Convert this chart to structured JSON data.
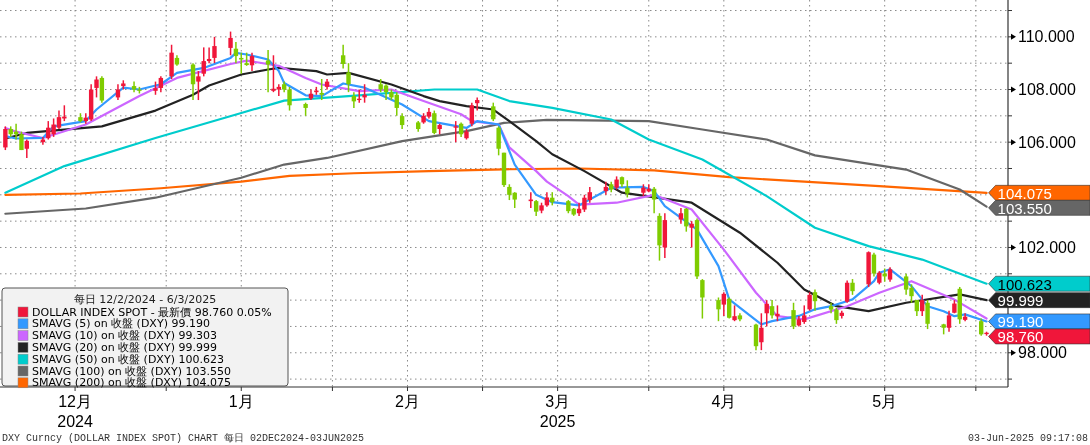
{
  "chart_data": {
    "type": "candlestick",
    "x": [
      "2024-12-02",
      "2024-12-03",
      "2024-12-04",
      "2024-12-05",
      "2024-12-06",
      "2024-12-09",
      "2024-12-10",
      "2024-12-11",
      "2024-12-12",
      "2024-12-13",
      "2024-12-16",
      "2024-12-17",
      "2024-12-18",
      "2024-12-19",
      "2024-12-20",
      "2024-12-23",
      "2024-12-24",
      "2024-12-26",
      "2024-12-27",
      "2024-12-30",
      "2024-12-31",
      "2025-01-02",
      "2025-01-03",
      "2025-01-06",
      "2025-01-07",
      "2025-01-08",
      "2025-01-09",
      "2025-01-10",
      "2025-01-13",
      "2025-01-14",
      "2025-01-15",
      "2025-01-16",
      "2025-01-17",
      "2025-01-20",
      "2025-01-21",
      "2025-01-22",
      "2025-01-23",
      "2025-01-24",
      "2025-01-27",
      "2025-01-28",
      "2025-01-29",
      "2025-01-30",
      "2025-01-31",
      "2025-02-03",
      "2025-02-04",
      "2025-02-05",
      "2025-02-06",
      "2025-02-07",
      "2025-02-10",
      "2025-02-11",
      "2025-02-12",
      "2025-02-13",
      "2025-02-14",
      "2025-02-17",
      "2025-02-18",
      "2025-02-19",
      "2025-02-20",
      "2025-02-21",
      "2025-02-24",
      "2025-02-25",
      "2025-02-26",
      "2025-02-27",
      "2025-02-28",
      "2025-03-03",
      "2025-03-04",
      "2025-03-05",
      "2025-03-06",
      "2025-03-07",
      "2025-03-10",
      "2025-03-11",
      "2025-03-12",
      "2025-03-13",
      "2025-03-14",
      "2025-03-17",
      "2025-03-18",
      "2025-03-19",
      "2025-03-20",
      "2025-03-21",
      "2025-03-24",
      "2025-03-25",
      "2025-03-26",
      "2025-03-27",
      "2025-03-28",
      "2025-03-31",
      "2025-04-01",
      "2025-04-02",
      "2025-04-03",
      "2025-04-04",
      "2025-04-07",
      "2025-04-08",
      "2025-04-09",
      "2025-04-10",
      "2025-04-11",
      "2025-04-14",
      "2025-04-15",
      "2025-04-16",
      "2025-04-17",
      "2025-04-18",
      "2025-04-21",
      "2025-04-22",
      "2025-04-23",
      "2025-04-24",
      "2025-04-25",
      "2025-04-28",
      "2025-04-29",
      "2025-04-30",
      "2025-05-01",
      "2025-05-02",
      "2025-05-05",
      "2025-05-06",
      "2025-05-07",
      "2025-05-08",
      "2025-05-09",
      "2025-05-12",
      "2025-05-13",
      "2025-05-14",
      "2025-05-15",
      "2025-05-16",
      "2025-05-19",
      "2025-05-20",
      "2025-05-21",
      "2025-05-22",
      "2025-05-23",
      "2025-05-26",
      "2025-05-27",
      "2025-05-28",
      "2025-05-29",
      "2025-05-30",
      "2025-06-02",
      "2025-06-03"
    ],
    "series": [
      {
        "name": "DOLLAR INDEX SPOT - 最新價 98.760 0.05%",
        "color": "#f0163a",
        "ohlc": [
          [
            105.8,
            106.6,
            105.7,
            106.5
          ],
          [
            106.5,
            106.6,
            106.2,
            106.3
          ],
          [
            106.4,
            106.7,
            106.1,
            106.3
          ],
          [
            106.3,
            106.4,
            105.7,
            105.7
          ],
          [
            105.75,
            106.1,
            105.4,
            106.05
          ],
          [
            106.0,
            106.2,
            105.9,
            106.1
          ],
          [
            106.15,
            106.8,
            106.1,
            106.55
          ],
          [
            106.3,
            106.9,
            106.2,
            106.67
          ],
          [
            106.55,
            107.2,
            106.5,
            106.95
          ],
          [
            106.9,
            107.4,
            106.8,
            106.97
          ],
          [
            106.95,
            107.1,
            106.75,
            106.8
          ],
          [
            106.8,
            107.1,
            106.7,
            106.93
          ],
          [
            106.86,
            108.2,
            106.8,
            108.0
          ],
          [
            108.06,
            108.5,
            107.7,
            108.38
          ],
          [
            108.44,
            108.5,
            107.5,
            107.58
          ],
          [
            107.7,
            108.2,
            107.6,
            108.0
          ],
          [
            108.13,
            108.35,
            108.0,
            108.23
          ],
          [
            108.13,
            108.3,
            107.9,
            108.0
          ],
          [
            108.0,
            108.1,
            107.85,
            107.95
          ],
          [
            107.95,
            108.3,
            107.8,
            108.05
          ],
          [
            108.06,
            108.5,
            107.9,
            108.44
          ],
          [
            108.5,
            109.7,
            108.4,
            109.4
          ],
          [
            109.2,
            109.3,
            108.9,
            108.95
          ],
          [
            108.95,
            109.0,
            107.6,
            108.2
          ],
          [
            108.3,
            108.7,
            107.6,
            108.5
          ],
          [
            108.6,
            109.6,
            108.5,
            109.08
          ],
          [
            109.08,
            109.6,
            109.0,
            109.16
          ],
          [
            109.2,
            110.0,
            109.0,
            109.65
          ],
          [
            109.58,
            110.2,
            109.3,
            109.96
          ],
          [
            109.55,
            109.8,
            109.0,
            109.27
          ],
          [
            109.2,
            109.4,
            108.6,
            109.14
          ],
          [
            109.0,
            109.4,
            108.9,
            108.93
          ],
          [
            108.92,
            109.4,
            108.7,
            109.27
          ],
          [
            109.1,
            109.5,
            107.9,
            108.95
          ],
          [
            107.95,
            109.3,
            107.9,
            108.03
          ],
          [
            108.0,
            108.2,
            107.75,
            108.1
          ],
          [
            108.2,
            108.3,
            107.9,
            108.0
          ],
          [
            108.0,
            108.1,
            107.2,
            107.4
          ],
          [
            107.45,
            107.5,
            107.0,
            107.3
          ],
          [
            107.66,
            108.0,
            107.6,
            107.84
          ],
          [
            107.9,
            108.1,
            107.8,
            107.96
          ],
          [
            107.87,
            108.4,
            107.6,
            107.8
          ],
          [
            108.1,
            108.4,
            108.0,
            108.3
          ],
          [
            109.3,
            109.7,
            108.8,
            108.97
          ],
          [
            108.65,
            109.0,
            107.9,
            108.2
          ],
          [
            107.75,
            107.9,
            107.3,
            107.55
          ],
          [
            107.6,
            108.0,
            107.5,
            107.65
          ],
          [
            107.7,
            108.2,
            107.5,
            107.8
          ],
          [
            108.2,
            108.4,
            107.9,
            108.0
          ],
          [
            108.15,
            108.2,
            107.6,
            107.9
          ],
          [
            107.9,
            108.0,
            107.6,
            107.7
          ],
          [
            107.8,
            107.9,
            107.0,
            107.3
          ],
          [
            106.99,
            107.1,
            106.5,
            106.65
          ],
          [
            106.75,
            106.8,
            106.4,
            106.5
          ],
          [
            106.75,
            107.1,
            106.7,
            107.0
          ],
          [
            106.97,
            107.3,
            106.9,
            107.15
          ],
          [
            107.1,
            107.2,
            106.3,
            106.35
          ],
          [
            106.5,
            106.7,
            106.3,
            106.65
          ],
          [
            106.55,
            106.8,
            106.0,
            106.6
          ],
          [
            106.7,
            106.75,
            106.2,
            106.3
          ],
          [
            106.15,
            106.5,
            106.1,
            106.4
          ],
          [
            106.7,
            107.5,
            106.6,
            107.4
          ],
          [
            107.48,
            107.7,
            107.2,
            107.6
          ],
          [
            107.36,
            107.5,
            106.8,
            106.87
          ],
          [
            106.55,
            106.6,
            105.5,
            105.75
          ],
          [
            105.6,
            105.6,
            104.3,
            104.37
          ],
          [
            104.3,
            104.4,
            103.8,
            104.0
          ],
          [
            104.08,
            104.1,
            103.5,
            103.82
          ],
          [
            103.76,
            104.1,
            103.5,
            103.82
          ],
          [
            103.76,
            103.8,
            103.2,
            103.36
          ],
          [
            103.4,
            103.7,
            103.3,
            103.6
          ],
          [
            103.6,
            104.1,
            103.55,
            103.9
          ],
          [
            103.89,
            104.1,
            103.6,
            103.72
          ],
          [
            103.76,
            103.8,
            103.3,
            103.38
          ],
          [
            103.47,
            103.5,
            103.2,
            103.25
          ],
          [
            103.3,
            103.7,
            103.2,
            103.47
          ],
          [
            103.44,
            104.0,
            103.35,
            103.89
          ],
          [
            103.8,
            104.3,
            103.7,
            104.1
          ],
          [
            104.14,
            104.5,
            104.0,
            104.3
          ],
          [
            104.4,
            104.5,
            104.1,
            104.2
          ],
          [
            104.27,
            104.7,
            104.2,
            104.58
          ],
          [
            104.67,
            104.7,
            104.3,
            104.4
          ],
          [
            104.27,
            104.55,
            103.9,
            104.05
          ],
          [
            104.08,
            104.4,
            103.95,
            104.27
          ],
          [
            104.13,
            104.4,
            104.1,
            104.23
          ],
          [
            104.23,
            104.3,
            103.3,
            103.82
          ],
          [
            103.2,
            103.3,
            101.5,
            102.08
          ],
          [
            102.0,
            103.3,
            101.6,
            103.04
          ],
          [
            103.06,
            103.5,
            102.9,
            103.3
          ],
          [
            103.47,
            103.5,
            102.6,
            102.8
          ],
          [
            102.75,
            103.0,
            102.0,
            102.9
          ],
          [
            103.04,
            103.1,
            100.8,
            100.9
          ],
          [
            100.76,
            100.8,
            99.3,
            100.1
          ],
          [
            100.0,
            100.1,
            99.2,
            99.65
          ],
          [
            99.83,
            100.3,
            99.4,
            100.24
          ],
          [
            100.05,
            100.1,
            99.3,
            99.33
          ],
          [
            99.24,
            99.8,
            99.2,
            99.39
          ],
          [
            99.42,
            99.5,
            99.2,
            99.27
          ],
          [
            99.07,
            99.1,
            98.1,
            98.25
          ],
          [
            98.4,
            99.5,
            98.1,
            98.95
          ],
          [
            99.5,
            100.0,
            99.0,
            99.86
          ],
          [
            99.77,
            100.0,
            99.3,
            99.42
          ],
          [
            99.39,
            99.8,
            99.2,
            99.48
          ],
          [
            99.62,
            99.9,
            98.9,
            99.0
          ],
          [
            99.04,
            99.4,
            99.0,
            99.27
          ],
          [
            99.17,
            99.8,
            99.1,
            99.42
          ],
          [
            99.65,
            100.3,
            99.6,
            100.2
          ],
          [
            100.3,
            100.4,
            99.6,
            99.96
          ],
          [
            99.77,
            99.9,
            99.5,
            99.64
          ],
          [
            99.64,
            99.7,
            99.1,
            99.24
          ],
          [
            99.4,
            99.6,
            99.3,
            99.52
          ],
          [
            99.94,
            100.75,
            99.9,
            100.66
          ],
          [
            100.66,
            100.8,
            100.2,
            100.34
          ],
          [
            100.6,
            101.85,
            100.5,
            101.82
          ],
          [
            101.73,
            101.8,
            100.9,
            101.01
          ],
          [
            100.66,
            101.1,
            100.6,
            101.04
          ],
          [
            101.01,
            101.2,
            100.7,
            100.9
          ],
          [
            100.78,
            101.25,
            100.7,
            101.17
          ],
          [
            100.9,
            101.0,
            100.2,
            100.4
          ],
          [
            100.47,
            100.6,
            99.9,
            100.15
          ],
          [
            100.0,
            100.0,
            99.4,
            99.58
          ],
          [
            99.58,
            100.2,
            99.4,
            100.0
          ],
          [
            99.9,
            100.0,
            98.9,
            99.1
          ],
          [
            99.08,
            99.1,
            98.7,
            98.95
          ],
          [
            98.95,
            99.6,
            98.8,
            99.42
          ],
          [
            99.52,
            100.0,
            99.5,
            99.87
          ],
          [
            100.43,
            100.5,
            99.1,
            99.27
          ],
          [
            99.25,
            99.5,
            99.2,
            99.37
          ],
          [
            99.2,
            99.3,
            98.65,
            98.7
          ],
          [
            98.71,
            98.8,
            98.65,
            98.76
          ]
        ],
        "colors": [
          "#f0163a",
          "#7fcc00",
          "#7fcc00",
          "#7fcc00",
          "#f0163a",
          "#f0163a",
          "#f0163a",
          "#f0163a",
          "#f0163a",
          "#f0163a",
          "#7fcc00",
          "#f0163a",
          "#f0163a",
          "#f0163a",
          "#7fcc00",
          "#f0163a",
          "#f0163a",
          "#7fcc00",
          "#7fcc00",
          "#f0163a",
          "#f0163a",
          "#f0163a",
          "#7fcc00",
          "#7fcc00",
          "#f0163a",
          "#f0163a",
          "#f0163a",
          "#f0163a",
          "#f0163a",
          "#7fcc00",
          "#7fcc00",
          "#7fcc00",
          "#f0163a",
          "#7fcc00",
          "#f0163a",
          "#f0163a",
          "#7fcc00",
          "#7fcc00",
          "#7fcc00",
          "#f0163a",
          "#f0163a",
          "#7fcc00",
          "#f0163a",
          "#7fcc00",
          "#7fcc00",
          "#7fcc00",
          "#f0163a",
          "#f0163a",
          "#7fcc00",
          "#7fcc00",
          "#7fcc00",
          "#7fcc00",
          "#7fcc00",
          "#7fcc00",
          "#f0163a",
          "#f0163a",
          "#7fcc00",
          "#f0163a",
          "#f0163a",
          "#7fcc00",
          "#f0163a",
          "#f0163a",
          "#f0163a",
          "#7fcc00",
          "#7fcc00",
          "#7fcc00",
          "#7fcc00",
          "#7fcc00",
          "#f0163a",
          "#7fcc00",
          "#f0163a",
          "#f0163a",
          "#7fcc00",
          "#7fcc00",
          "#7fcc00",
          "#f0163a",
          "#f0163a",
          "#f0163a",
          "#f0163a",
          "#7fcc00",
          "#f0163a",
          "#7fcc00",
          "#7fcc00",
          "#f0163a",
          "#f0163a",
          "#7fcc00",
          "#7fcc00",
          "#f0163a",
          "#f0163a",
          "#7fcc00",
          "#f0163a",
          "#7fcc00",
          "#7fcc00",
          "#7fcc00",
          "#f0163a",
          "#7fcc00",
          "#f0163a",
          "#7fcc00",
          "#7fcc00",
          "#f0163a",
          "#f0163a",
          "#7fcc00",
          "#f0163a",
          "#7fcc00",
          "#f0163a",
          "#f0163a",
          "#f0163a",
          "#7fcc00",
          "#7fcc00",
          "#7fcc00",
          "#f0163a",
          "#f0163a",
          "#7fcc00",
          "#f0163a",
          "#7fcc00",
          "#f0163a",
          "#7fcc00",
          "#f0163a",
          "#7fcc00",
          "#7fcc00",
          "#7fcc00",
          "#f0163a",
          "#7fcc00",
          "#7fcc00",
          "#f0163a",
          "#f0163a",
          "#7fcc00",
          "#f0163a",
          "#7fcc00",
          "#f0163a"
        ],
        "value_labels": [
          null,
          null,
          null,
          null,
          null,
          null,
          null,
          null,
          null,
          null,
          null,
          null,
          null,
          null,
          null,
          null,
          null,
          null,
          null,
          null,
          null,
          null,
          null,
          null,
          null,
          null,
          null,
          null,
          null,
          null,
          null,
          null,
          null,
          null,
          null,
          null,
          null,
          null,
          null,
          null,
          null,
          null,
          null,
          null,
          null,
          null,
          null,
          null,
          null,
          null,
          null,
          null,
          null,
          null,
          null,
          null,
          null,
          null,
          null,
          null,
          null,
          null,
          null,
          null,
          null,
          null,
          null,
          null,
          null,
          null,
          null,
          null,
          null,
          null,
          null,
          null,
          null,
          null,
          null,
          null,
          null,
          null,
          null,
          null,
          null,
          null,
          null,
          null,
          null,
          null,
          null,
          null,
          null,
          null,
          null,
          null,
          null,
          null,
          null,
          null,
          null,
          null,
          null,
          null,
          null,
          null,
          null,
          null,
          null,
          null,
          null,
          null,
          null,
          null,
          null,
          null,
          null,
          null,
          null,
          null,
          null,
          null,
          null,
          null,
          null,
          null,
          null,
          null,
          null,
          "98.760"
        ]
      },
      {
        "type": "line",
        "name": "SMAVG (5) on 收盤 (DXY) 99.190",
        "color": "#3399ff",
        "x": [
          "2024-12-02",
          "2024-12-04",
          "2024-12-09",
          "2024-12-11",
          "2024-12-17",
          "2024-12-19",
          "2024-12-24",
          "2024-12-27",
          "2024-12-31",
          "2025-01-03",
          "2025-01-08",
          "2025-01-13",
          "2025-01-14",
          "2025-01-16",
          "2025-01-20",
          "2025-01-22",
          "2025-01-23",
          "2025-01-27",
          "2025-01-30",
          "2025-02-03",
          "2025-02-07",
          "2025-02-14",
          "2025-02-19",
          "2025-02-26",
          "2025-02-28",
          "2025-03-04",
          "2025-03-07",
          "2025-03-11",
          "2025-03-14",
          "2025-03-19",
          "2025-03-25",
          "2025-03-31",
          "2025-04-02",
          "2025-04-04",
          "2025-04-10",
          "2025-04-14",
          "2025-04-16",
          "2025-04-22",
          "2025-04-24",
          "2025-04-29",
          "2025-05-02",
          "2025-05-05",
          "2025-05-09",
          "2025-05-13",
          "2025-05-14",
          "2025-05-16",
          "2025-05-20",
          "2025-05-23",
          "2025-05-26",
          "2025-05-28",
          "2025-05-30",
          "2025-06-03"
        ],
        "values": [
          106.23,
          106.14,
          106.16,
          106.6,
          106.8,
          107.24,
          108.07,
          108.0,
          108.2,
          108.63,
          108.82,
          109.2,
          109.39,
          109.33,
          109.14,
          108.7,
          108.25,
          107.78,
          107.75,
          108.23,
          108.07,
          107.43,
          106.8,
          106.54,
          106.8,
          106.67,
          105.15,
          104.0,
          103.72,
          103.6,
          104.27,
          104.3,
          104.14,
          103.57,
          102.68,
          101.29,
          100.03,
          99.08,
          99.2,
          99.4,
          99.65,
          99.77,
          100.03,
          100.72,
          101.04,
          101.17,
          100.53,
          99.77,
          99.58,
          99.39,
          99.46,
          99.19
        ],
        "value_labels": [
          null,
          null,
          null,
          null,
          null,
          null,
          null,
          null,
          null,
          null,
          null,
          null,
          null,
          null,
          null,
          null,
          null,
          null,
          null,
          null,
          null,
          null,
          null,
          null,
          null,
          null,
          null,
          null,
          null,
          null,
          null,
          null,
          null,
          null,
          null,
          null,
          null,
          null,
          null,
          null,
          null,
          null,
          null,
          null,
          null,
          null,
          null,
          null,
          null,
          null,
          null,
          "99.190"
        ]
      },
      {
        "type": "line",
        "name": "SMAVG (10) on 收盤 (DXY) 99.303",
        "color": "#cc66ff",
        "x": [
          "2024-12-02",
          "2024-12-04",
          "2024-12-09",
          "2024-12-17",
          "2024-12-27",
          "2025-01-03",
          "2025-01-13",
          "2025-01-16",
          "2025-01-22",
          "2025-01-27",
          "2025-01-30",
          "2025-02-06",
          "2025-02-12",
          "2025-02-18",
          "2025-02-25",
          "2025-02-27",
          "2025-03-04",
          "2025-03-06",
          "2025-03-11",
          "2025-03-13",
          "2025-03-17",
          "2025-03-19",
          "2025-03-26",
          "2025-04-02",
          "2025-04-09",
          "2025-04-15",
          "2025-04-21",
          "2025-04-25",
          "2025-04-30",
          "2025-05-08",
          "2025-05-14",
          "2025-05-20",
          "2025-05-28",
          "2025-06-03"
        ],
        "values": [
          106.54,
          106.4,
          106.16,
          106.67,
          107.75,
          108.44,
          108.97,
          109.1,
          108.9,
          108.44,
          108.19,
          107.94,
          108.0,
          107.56,
          107.06,
          106.8,
          106.67,
          105.8,
          104.9,
          104.5,
          103.95,
          103.63,
          103.7,
          104.0,
          103.44,
          101.92,
          100.28,
          99.39,
          99.27,
          99.77,
          100.28,
          100.72,
          100.02,
          99.3
        ]
      },
      {
        "type": "line",
        "name": "SMAVG (20) on 收盤 (DXY) 99.999",
        "color": "#222222",
        "x": [
          "2024-12-02",
          "2024-12-06",
          "2024-12-20",
          "2024-12-30",
          "2025-01-06",
          "2025-01-09",
          "2025-01-15",
          "2025-01-20",
          "2025-01-22",
          "2025-01-29",
          "2025-01-31",
          "2025-02-04",
          "2025-02-12",
          "2025-02-18",
          "2025-02-21",
          "2025-02-26",
          "2025-03-03",
          "2025-03-06",
          "2025-03-11",
          "2025-03-14",
          "2025-03-20",
          "2025-03-27",
          "2025-04-09",
          "2025-04-18",
          "2025-04-25",
          "2025-04-30",
          "2025-05-06",
          "2025-05-12",
          "2025-05-19",
          "2025-05-29",
          "2025-06-03"
        ],
        "values": [
          106.14,
          106.35,
          106.6,
          107.2,
          107.8,
          108.15,
          108.57,
          108.76,
          108.82,
          108.7,
          108.57,
          108.63,
          108.19,
          107.75,
          107.56,
          107.37,
          107.24,
          106.8,
          106.04,
          105.54,
          104.9,
          104.08,
          103.7,
          102.56,
          101.42,
          100.4,
          99.77,
          99.58,
          99.9,
          100.22,
          99.999
        ],
        "value_labels": [
          null,
          null,
          null,
          null,
          null,
          null,
          null,
          null,
          null,
          null,
          null,
          null,
          null,
          null,
          null,
          null,
          null,
          null,
          null,
          null,
          null,
          null,
          null,
          null,
          null,
          null,
          null,
          null,
          null,
          null,
          "99.999"
        ]
      },
      {
        "type": "line",
        "name": "SMAVG (50) on 收盤 (DXY) 100.623",
        "color": "#00cccc",
        "x": [
          "2024-12-02",
          "2024-12-13",
          "2024-12-30",
          "2025-01-15",
          "2025-01-23",
          "2025-02-06",
          "2025-02-20",
          "2025-02-28",
          "2025-03-06",
          "2025-03-14",
          "2025-03-25",
          "2025-04-01",
          "2025-04-11",
          "2025-04-23",
          "2025-05-02",
          "2025-05-12",
          "2025-05-22",
          "2025-06-03"
        ],
        "values": [
          104.08,
          105.09,
          106.16,
          107.11,
          107.58,
          107.78,
          108.0,
          108.0,
          107.56,
          107.3,
          106.86,
          106.1,
          105.34,
          103.95,
          102.75,
          102.05,
          101.54,
          100.623
        ],
        "value_labels": [
          null,
          null,
          null,
          null,
          null,
          null,
          null,
          null,
          null,
          null,
          null,
          null,
          null,
          null,
          null,
          null,
          null,
          "100.623"
        ]
      },
      {
        "type": "line",
        "name": "SMAVG (100) on 收盤 (DXY) 103.550",
        "color": "#666666",
        "x": [
          "2024-12-02",
          "2024-12-17",
          "2024-12-30",
          "2025-01-15",
          "2025-01-23",
          "2025-01-31",
          "2025-02-14",
          "2025-02-26",
          "2025-03-05",
          "2025-03-13",
          "2025-04-01",
          "2025-04-11",
          "2025-04-23",
          "2025-05-02",
          "2025-05-19",
          "2025-05-29",
          "2025-06-03"
        ],
        "values": [
          103.28,
          103.48,
          103.89,
          104.65,
          105.15,
          105.4,
          106.04,
          106.42,
          106.73,
          106.85,
          106.8,
          106.48,
          106.1,
          105.5,
          104.96,
          104.2,
          103.55
        ],
        "value_labels": [
          null,
          null,
          null,
          null,
          null,
          null,
          null,
          null,
          null,
          null,
          null,
          null,
          null,
          null,
          null,
          null,
          "103.550"
        ]
      },
      {
        "type": "line",
        "name": "SMAVG (200) on 收盤 (DXY) 104.075",
        "color": "#ff6600",
        "x": [
          "2024-12-02",
          "2024-12-16",
          "2024-12-31",
          "2025-01-15",
          "2025-01-24",
          "2025-02-05",
          "2025-02-19",
          "2025-03-05",
          "2025-03-19",
          "2025-04-02",
          "2025-04-16",
          "2025-04-30",
          "2025-05-14",
          "2025-05-28",
          "2025-06-03"
        ],
        "values": [
          104.0,
          104.05,
          104.25,
          104.5,
          104.72,
          104.82,
          104.9,
          104.97,
          105.0,
          104.93,
          104.67,
          104.5,
          104.33,
          104.15,
          104.075
        ],
        "value_labels": [
          null,
          null,
          null,
          null,
          null,
          null,
          null,
          null,
          null,
          null,
          null,
          null,
          null,
          null,
          "104.075"
        ]
      }
    ],
    "xlim": [
      "2024-12-01",
      "2025-06-07"
    ],
    "xticks": [
      {
        "value": "2024-12-15",
        "label": "12月\n2024"
      },
      {
        "value": "2025-01-01",
        "label": null
      },
      {
        "value": "2025-01-15",
        "label": "1月"
      },
      {
        "value": "2025-02-01",
        "label": null
      },
      {
        "value": "2025-02-15",
        "label": "2月"
      },
      {
        "value": "2025-03-01",
        "label": null
      },
      {
        "value": "2025-03-15",
        "label": "3月\n2025"
      },
      {
        "value": "2025-04-01",
        "label": null
      },
      {
        "value": "2025-04-15",
        "label": "4月"
      },
      {
        "value": "2025-05-01",
        "label": null
      },
      {
        "value": "2025-05-15",
        "label": "5月"
      },
      {
        "value": "2025-06-01",
        "label": null
      }
    ],
    "ylim": [
      96.7,
      111.4
    ],
    "yticks": [
      {
        "value": 97,
        "label": null
      },
      {
        "value": 98,
        "label": "98.000"
      },
      {
        "value": 99,
        "label": null
      },
      {
        "value": 100,
        "label": null
      },
      {
        "value": 101,
        "label": null
      },
      {
        "value": 102,
        "label": "102.000"
      },
      {
        "value": 103,
        "label": null
      },
      {
        "value": 104,
        "label": null
      },
      {
        "value": 105,
        "label": null
      },
      {
        "value": 106,
        "label": "106.000"
      },
      {
        "value": 107,
        "label": null
      },
      {
        "value": 108,
        "label": "108.000"
      },
      {
        "value": 109,
        "label": null
      },
      {
        "value": 110,
        "label": "110.000"
      },
      {
        "value": 111,
        "label": null
      }
    ],
    "grid": true,
    "legend": "bottom left",
    "legend_title": "每日 12/2/2024 - 6/3/2025",
    "annotations": [
      "DXY Curncy (DOLLAR INDEX SPOT) CHART 每日 02DEC2024-03JUN2025",
      "03-Jun-2025 09:17:08"
    ]
  }
}
